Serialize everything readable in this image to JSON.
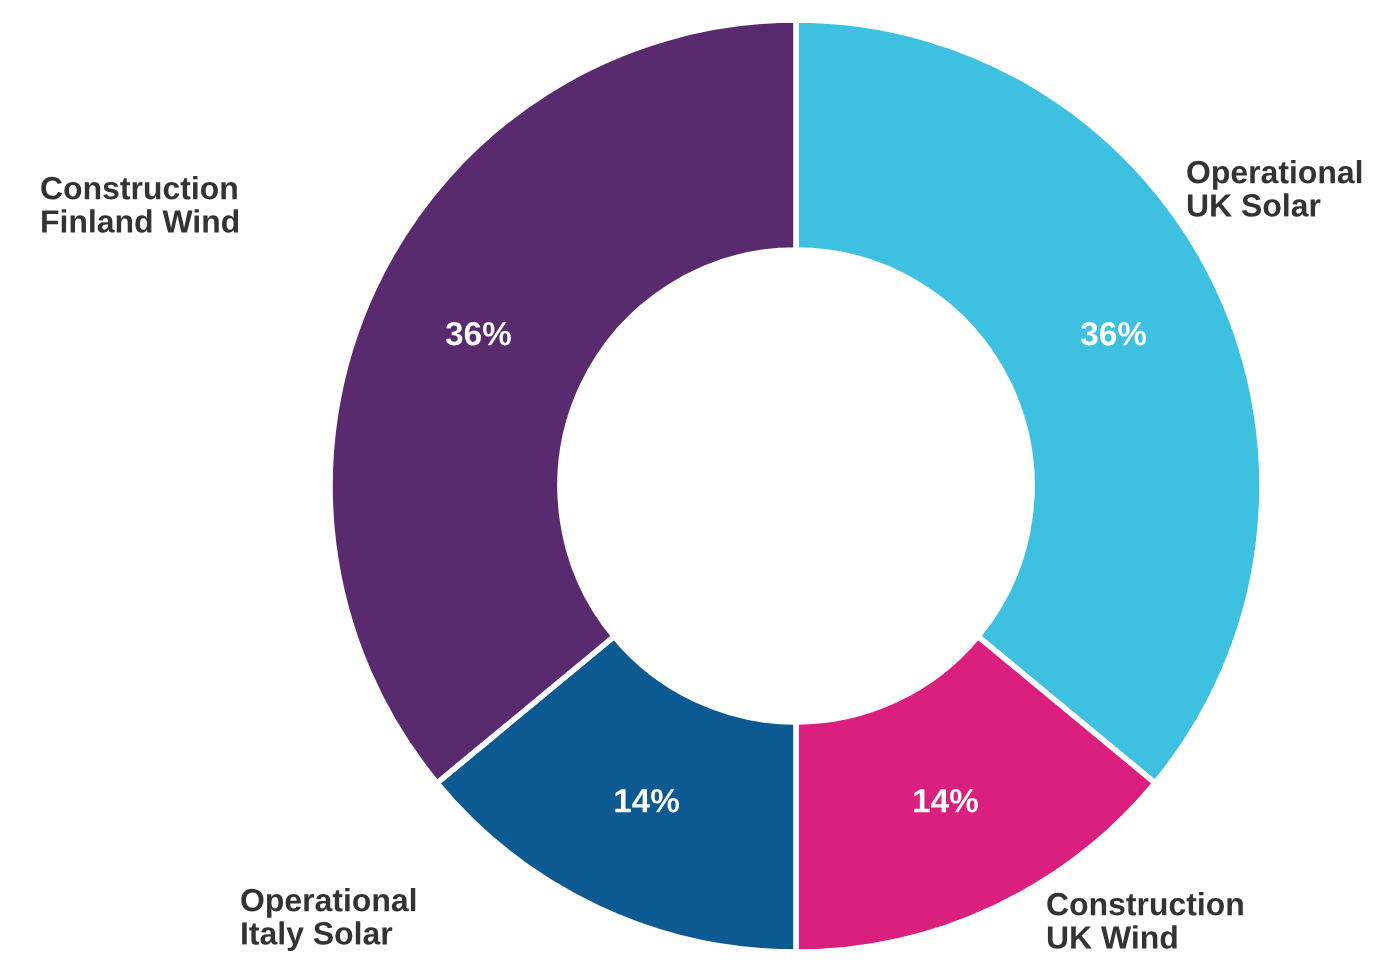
{
  "chart_data": {
    "type": "donut",
    "categories": [
      "Operational\nUK Solar",
      "Construction\nUK Wind",
      "Operational\nItaly Solar",
      "Construction\nFinland Wind"
    ],
    "values": [
      36,
      14,
      14,
      36
    ],
    "colors": [
      "#3ec1e0",
      "#db1f7e",
      "#0c5a91",
      "#5a2a6e"
    ],
    "value_labels": [
      "36%",
      "14%",
      "14%",
      "36%"
    ]
  }
}
